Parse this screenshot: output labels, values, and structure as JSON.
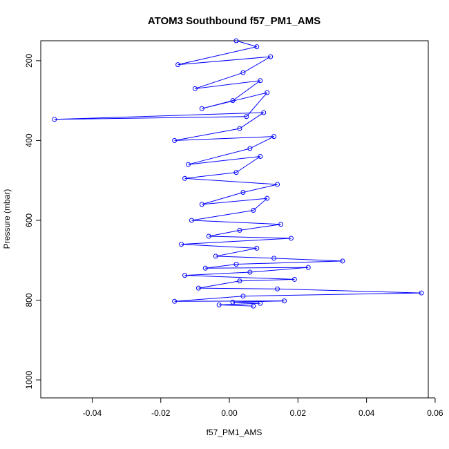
{
  "chart_data": {
    "type": "line",
    "title": "ATOM3 Southbound f57_PM1_AMS",
    "xlabel": "f57_PM1_AMS",
    "ylabel": "Pressure (mbar)",
    "xlim": [
      -0.055,
      0.058
    ],
    "ylim": [
      1045,
      150
    ],
    "y_reversed": true,
    "grid": false,
    "x_ticks": [
      -0.04,
      -0.02,
      0.0,
      0.02,
      0.04,
      0.06
    ],
    "x_tick_labels": [
      "-0.04",
      "-0.02",
      "0.00",
      "0.02",
      "0.04",
      "0.06"
    ],
    "y_ticks": [
      200,
      400,
      600,
      800,
      1000
    ],
    "y_tick_labels": [
      "200",
      "400",
      "600",
      "800",
      "1000"
    ],
    "series_color": "#0000ff",
    "series": [
      {
        "marker": "open-circle",
        "points": [
          [
            0.002,
            150
          ],
          [
            0.008,
            165
          ],
          [
            -0.015,
            210
          ],
          [
            0.012,
            190
          ],
          [
            0.004,
            230
          ],
          [
            -0.01,
            270
          ],
          [
            0.009,
            250
          ],
          [
            0.001,
            300
          ],
          [
            -0.008,
            320
          ],
          [
            0.011,
            280
          ],
          [
            0.005,
            340
          ],
          [
            -0.051,
            347
          ],
          [
            0.01,
            330
          ],
          [
            0.003,
            370
          ],
          [
            -0.016,
            400
          ],
          [
            0.013,
            390
          ],
          [
            0.006,
            420
          ],
          [
            -0.012,
            460
          ],
          [
            0.009,
            440
          ],
          [
            0.002,
            480
          ],
          [
            -0.013,
            495
          ],
          [
            0.014,
            510
          ],
          [
            0.004,
            530
          ],
          [
            -0.008,
            560
          ],
          [
            0.011,
            545
          ],
          [
            0.007,
            575
          ],
          [
            -0.011,
            600
          ],
          [
            0.015,
            610
          ],
          [
            0.003,
            625
          ],
          [
            -0.006,
            640
          ],
          [
            0.018,
            645
          ],
          [
            -0.014,
            660
          ],
          [
            0.008,
            670
          ],
          [
            -0.004,
            690
          ],
          [
            0.013,
            695
          ],
          [
            0.033,
            702
          ],
          [
            0.002,
            710
          ],
          [
            -0.007,
            720
          ],
          [
            0.023,
            718
          ],
          [
            0.006,
            730
          ],
          [
            -0.013,
            738
          ],
          [
            0.019,
            748
          ],
          [
            0.003,
            752
          ],
          [
            -0.009,
            770
          ],
          [
            0.014,
            772
          ],
          [
            0.056,
            782
          ],
          [
            0.004,
            790
          ],
          [
            -0.016,
            803
          ],
          [
            0.016,
            802
          ],
          [
            0.001,
            805
          ],
          [
            0.009,
            808
          ],
          [
            -0.003,
            812
          ],
          [
            0.007,
            815
          ]
        ]
      }
    ]
  }
}
